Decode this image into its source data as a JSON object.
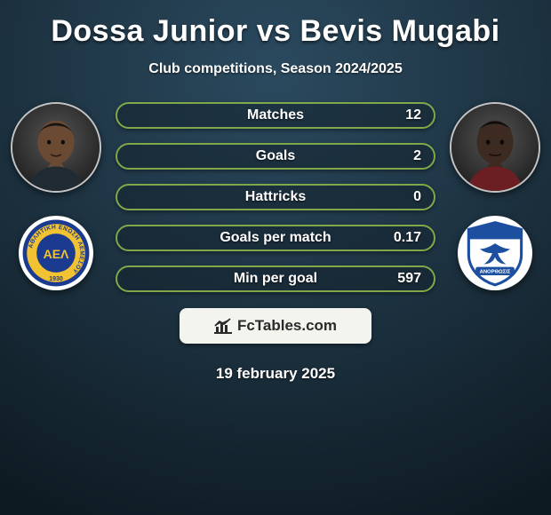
{
  "background": {
    "top_color": "#2b4a5f",
    "bottom_color": "#0e1a22"
  },
  "title": "Dossa Junior vs Bevis Mugabi",
  "subtitle": "Club competitions, Season 2024/2025",
  "date": "19 february 2025",
  "bar_style": {
    "track_color": "rgba(20,35,45,0.55)",
    "border_color": "#7fa84a",
    "fill_color": "#4a6b2f",
    "label_color": "#ffffff",
    "label_fontsize": 16
  },
  "stats": [
    {
      "label": "Matches",
      "value": "12",
      "fill_left_pct": 0
    },
    {
      "label": "Goals",
      "value": "2",
      "fill_left_pct": 0
    },
    {
      "label": "Hattricks",
      "value": "0",
      "fill_left_pct": 0
    },
    {
      "label": "Goals per match",
      "value": "0.17",
      "fill_left_pct": 0
    },
    {
      "label": "Min per goal",
      "value": "597",
      "fill_left_pct": 0
    }
  ],
  "players": {
    "left": {
      "name": "Dossa Junior",
      "skin": "#6b4a33",
      "shirt": "#1f2a33"
    },
    "right": {
      "name": "Bevis Mugabi",
      "skin": "#3d2a20",
      "shirt": "#6b1f22"
    }
  },
  "clubs": {
    "left": {
      "name": "AEL Limassol",
      "ring_outer": "#1a3b8f",
      "ring_inner": "#f2c233",
      "center": "#1a3b8f",
      "text": "ΑΘΛΗΤΙKH ΕΝΩΣΗ ΛΕΜΕΣΟΥ",
      "text_color": "#1a3b8f",
      "year": "1930"
    },
    "right": {
      "name": "Anorthosis",
      "shield_fill": "#ffffff",
      "shield_border": "#1d4fa0",
      "top_band": "#1d4fa0",
      "eagle": "#1d4fa0",
      "banner_text": "ΑΝΟΡΘΩΣΙΣ"
    }
  },
  "brand": {
    "box_bg": "#f3f4ee",
    "text": "FcTables.com",
    "text_color": "#2a2a2a",
    "icon_color": "#2a2a2a"
  },
  "date_color": "#ffffff"
}
